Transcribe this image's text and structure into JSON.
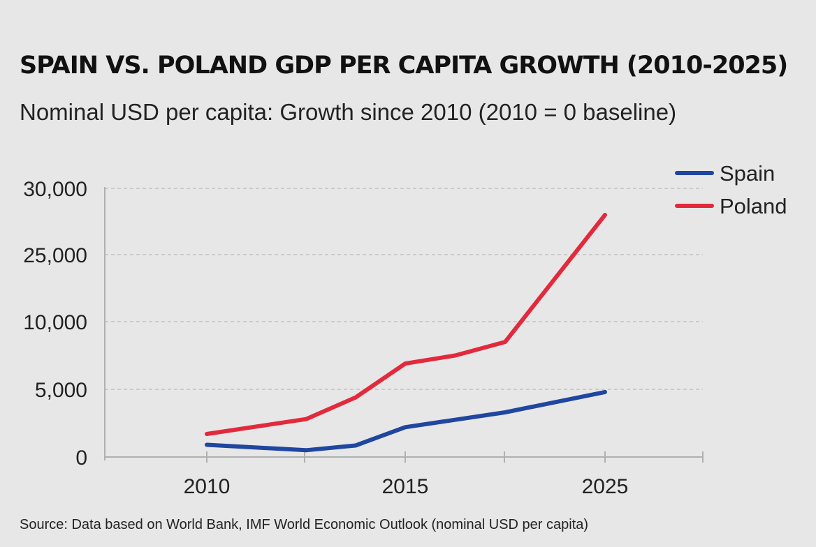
{
  "title": "SPAIN VS. POLAND GDP PER CAPITA GROWTH (2010-2025)",
  "subtitle": "Nominal USD per capita: Growth since 2010 (2010 = 0 baseline)",
  "source": "Source: Data based on World Bank, IMF World Economic Outlook (nominal USD per capita)",
  "chart_data": {
    "type": "line",
    "title": "SPAIN VS. POLAND GDP PER CAPITA GROWTH (2010-2025)",
    "subtitle": "Nominal USD per capita: Growth since 2010 (2010 = 0 baseline)",
    "xlabel": "",
    "ylabel": "",
    "x_ticks": [
      "2010",
      "2015",
      "2025"
    ],
    "y_ticks": [
      "0",
      "5,000",
      "10,000",
      "25,000",
      "30,000"
    ],
    "grid": true,
    "legend_position": "top-right",
    "series": [
      {
        "name": "Spain",
        "color": "#1f46a0",
        "points": [
          {
            "tick_pos": 0.0,
            "value": 900
          },
          {
            "tick_pos": 0.5,
            "value": 500
          },
          {
            "tick_pos": 0.75,
            "value": 850
          },
          {
            "tick_pos": 1.0,
            "value": 2200
          },
          {
            "tick_pos": 1.5,
            "value": 3300
          },
          {
            "tick_pos": 2.0,
            "value": 4800
          }
        ]
      },
      {
        "name": "Poland",
        "color": "#e22a3c",
        "points": [
          {
            "tick_pos": 0.0,
            "value": 1700
          },
          {
            "tick_pos": 0.5,
            "value": 2800
          },
          {
            "tick_pos": 0.75,
            "value": 4400
          },
          {
            "tick_pos": 1.0,
            "value": 6900
          },
          {
            "tick_pos": 1.25,
            "value": 7500
          },
          {
            "tick_pos": 1.5,
            "value": 8500
          },
          {
            "tick_pos": 2.0,
            "value": 28000
          }
        ]
      }
    ]
  }
}
